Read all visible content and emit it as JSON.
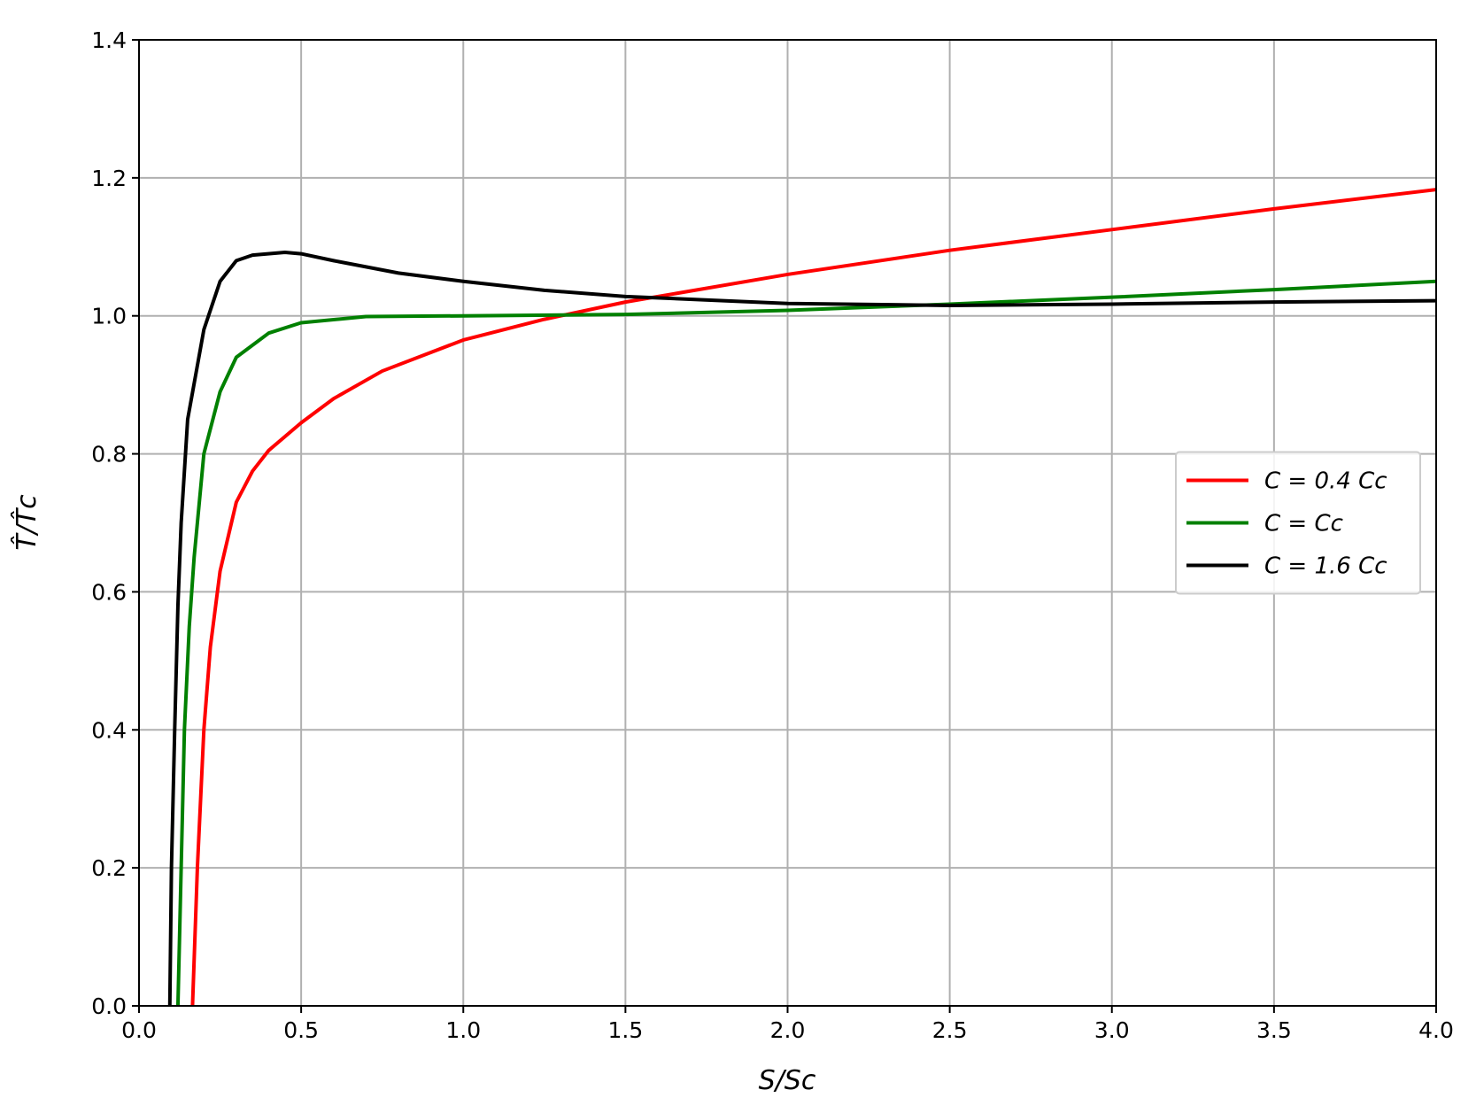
{
  "chart_data": {
    "type": "line",
    "xlabel": "S/Sc",
    "ylabel": "T̂/T̂c",
    "xlim": [
      0.0,
      4.0
    ],
    "ylim": [
      0.0,
      1.4
    ],
    "xticks": [
      {
        "value": 0.0,
        "label": "0.0"
      },
      {
        "value": 0.5,
        "label": "0.5"
      },
      {
        "value": 1.0,
        "label": "1.0"
      },
      {
        "value": 1.5,
        "label": "1.5"
      },
      {
        "value": 2.0,
        "label": "2.0"
      },
      {
        "value": 2.5,
        "label": "2.5"
      },
      {
        "value": 3.0,
        "label": "3.0"
      },
      {
        "value": 3.5,
        "label": "3.5"
      },
      {
        "value": 4.0,
        "label": "4.0"
      }
    ],
    "yticks": [
      {
        "value": 0.0,
        "label": "0.0"
      },
      {
        "value": 0.2,
        "label": "0.2"
      },
      {
        "value": 0.4,
        "label": "0.4"
      },
      {
        "value": 0.6,
        "label": "0.6"
      },
      {
        "value": 0.8,
        "label": "0.8"
      },
      {
        "value": 1.0,
        "label": "1.0"
      },
      {
        "value": 1.2,
        "label": "1.2"
      },
      {
        "value": 1.4,
        "label": "1.4"
      }
    ],
    "grid": true,
    "legend_loc": "center right",
    "series": [
      {
        "name": "C = 0.4 Cc",
        "color": "#ff0000",
        "x": [
          0.165,
          0.18,
          0.2,
          0.22,
          0.25,
          0.3,
          0.35,
          0.4,
          0.5,
          0.6,
          0.75,
          1.0,
          1.25,
          1.5,
          2.0,
          2.5,
          3.0,
          3.5,
          4.0
        ],
        "values": [
          0.0,
          0.2,
          0.4,
          0.52,
          0.63,
          0.73,
          0.775,
          0.805,
          0.845,
          0.88,
          0.92,
          0.965,
          0.995,
          1.02,
          1.06,
          1.095,
          1.125,
          1.155,
          1.183
        ]
      },
      {
        "name": "C = Cc",
        "color": "#008000",
        "x": [
          0.12,
          0.13,
          0.14,
          0.155,
          0.17,
          0.2,
          0.25,
          0.3,
          0.4,
          0.5,
          0.7,
          1.0,
          1.5,
          2.0,
          2.5,
          3.0,
          3.5,
          4.0
        ],
        "values": [
          0.0,
          0.2,
          0.4,
          0.55,
          0.65,
          0.8,
          0.89,
          0.94,
          0.975,
          0.99,
          0.999,
          1.0,
          1.002,
          1.008,
          1.017,
          1.027,
          1.038,
          1.05
        ]
      },
      {
        "name": "C = 1.6 Cc",
        "color": "#000000",
        "x": [
          0.095,
          0.1,
          0.11,
          0.12,
          0.13,
          0.15,
          0.2,
          0.25,
          0.3,
          0.35,
          0.45,
          0.5,
          0.6,
          0.8,
          1.0,
          1.25,
          1.5,
          2.0,
          2.5,
          3.0,
          3.5,
          4.0
        ],
        "values": [
          0.0,
          0.2,
          0.4,
          0.58,
          0.7,
          0.85,
          0.98,
          1.05,
          1.08,
          1.088,
          1.092,
          1.09,
          1.08,
          1.062,
          1.05,
          1.037,
          1.028,
          1.018,
          1.015,
          1.017,
          1.02,
          1.022
        ]
      }
    ]
  }
}
